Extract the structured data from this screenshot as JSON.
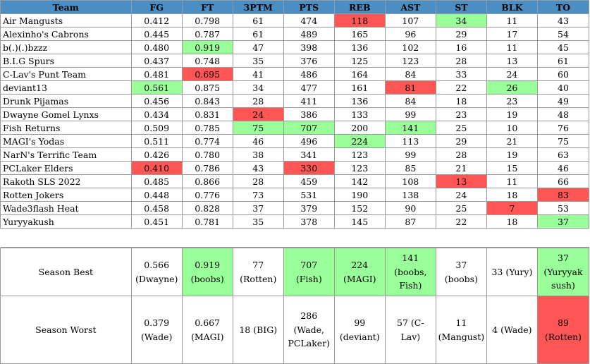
{
  "columns": [
    "Team",
    "FG",
    "FT",
    "3PTM",
    "PTS",
    "REB",
    "AST",
    "ST",
    "BLK",
    "TO"
  ],
  "colors": {
    "header_blue": "#4a8ec3",
    "best_green": "#99ff99",
    "worst_red": "#ff5555"
  },
  "rows": [
    {
      "team": "Air Mangusts",
      "values": [
        "0.412",
        "0.798",
        "61",
        "474",
        "118",
        "107",
        "34",
        "11",
        "43"
      ],
      "hl": [
        "",
        "",
        "",
        "",
        "r",
        "",
        "g",
        "",
        ""
      ]
    },
    {
      "team": "Alexinho's Cabrons",
      "values": [
        "0.445",
        "0.787",
        "61",
        "489",
        "165",
        "96",
        "29",
        "17",
        "54"
      ],
      "hl": [
        "",
        "",
        "",
        "",
        "",
        "",
        "",
        "",
        ""
      ]
    },
    {
      "team": "b(.)(.)bzzz",
      "values": [
        "0.480",
        "0.919",
        "47",
        "398",
        "136",
        "102",
        "16",
        "11",
        "45"
      ],
      "hl": [
        "",
        "g",
        "",
        "",
        "",
        "",
        "",
        "",
        ""
      ]
    },
    {
      "team": "B.I.G Spurs",
      "values": [
        "0.437",
        "0.748",
        "35",
        "376",
        "125",
        "123",
        "28",
        "13",
        "61"
      ],
      "hl": [
        "",
        "",
        "",
        "",
        "",
        "",
        "",
        "",
        ""
      ]
    },
    {
      "team": "C-Lav's Punt Team",
      "values": [
        "0.481",
        "0.695",
        "41",
        "486",
        "164",
        "84",
        "33",
        "24",
        "60"
      ],
      "hl": [
        "",
        "r",
        "",
        "",
        "",
        "",
        "",
        "",
        ""
      ]
    },
    {
      "team": "deviant13",
      "values": [
        "0.561",
        "0.875",
        "34",
        "477",
        "161",
        "81",
        "22",
        "26",
        "40"
      ],
      "hl": [
        "g",
        "",
        "",
        "",
        "",
        "r",
        "",
        "g",
        ""
      ]
    },
    {
      "team": "Drunk Pijamas",
      "values": [
        "0.456",
        "0.843",
        "28",
        "411",
        "136",
        "84",
        "18",
        "23",
        "49"
      ],
      "hl": [
        "",
        "",
        "",
        "",
        "",
        "",
        "",
        "",
        ""
      ]
    },
    {
      "team": "Dwayne Gomel Lynxs",
      "values": [
        "0.434",
        "0.831",
        "24",
        "386",
        "133",
        "99",
        "23",
        "19",
        "48"
      ],
      "hl": [
        "",
        "",
        "r",
        "",
        "",
        "",
        "",
        "",
        ""
      ]
    },
    {
      "team": "Fish Returns",
      "values": [
        "0.509",
        "0.785",
        "75",
        "707",
        "200",
        "141",
        "25",
        "10",
        "76"
      ],
      "hl": [
        "",
        "",
        "g",
        "g",
        "",
        "g",
        "",
        "",
        ""
      ]
    },
    {
      "team": "MAGI's Yodas",
      "values": [
        "0.511",
        "0.774",
        "46",
        "496",
        "224",
        "113",
        "29",
        "21",
        "75"
      ],
      "hl": [
        "",
        "",
        "",
        "",
        "g",
        "",
        "",
        "",
        ""
      ]
    },
    {
      "team": "NarN's Terrific Team",
      "values": [
        "0.426",
        "0.780",
        "38",
        "341",
        "123",
        "99",
        "28",
        "19",
        "63"
      ],
      "hl": [
        "",
        "",
        "",
        "",
        "",
        "",
        "",
        "",
        ""
      ]
    },
    {
      "team": "PCLaker Elders",
      "values": [
        "0.410",
        "0.786",
        "43",
        "330",
        "123",
        "85",
        "21",
        "15",
        "46"
      ],
      "hl": [
        "r",
        "",
        "",
        "r",
        "",
        "",
        "",
        "",
        ""
      ]
    },
    {
      "team": "Rakoth SLS 2022",
      "values": [
        "0.485",
        "0.866",
        "28",
        "459",
        "142",
        "108",
        "13",
        "11",
        "66"
      ],
      "hl": [
        "",
        "",
        "",
        "",
        "",
        "",
        "r",
        "",
        ""
      ]
    },
    {
      "team": "Rotten Jokers",
      "values": [
        "0.448",
        "0.776",
        "73",
        "531",
        "190",
        "138",
        "24",
        "18",
        "83"
      ],
      "hl": [
        "",
        "",
        "",
        "",
        "",
        "",
        "",
        "",
        "r"
      ]
    },
    {
      "team": "Wade3flash Heat",
      "values": [
        "0.458",
        "0.828",
        "37",
        "379",
        "152",
        "90",
        "25",
        "7",
        "53"
      ],
      "hl": [
        "",
        "",
        "",
        "",
        "",
        "",
        "",
        "r",
        ""
      ]
    },
    {
      "team": "Yuryyakush",
      "values": [
        "0.451",
        "0.781",
        "35",
        "378",
        "145",
        "87",
        "22",
        "18",
        "37"
      ],
      "hl": [
        "",
        "",
        "",
        "",
        "",
        "",
        "",
        "",
        "g"
      ]
    }
  ],
  "season_best": {
    "label": "Season Best",
    "cells": [
      {
        "l1": "0.566",
        "l2": "(Dwayne)",
        "hl": ""
      },
      {
        "l1": "0.919",
        "l2": "(boobs)",
        "hl": "g"
      },
      {
        "l1": "77",
        "l2": "(Rotten)",
        "hl": ""
      },
      {
        "l1": "707",
        "l2": "(Fish)",
        "hl": "g"
      },
      {
        "l1": "224",
        "l2": "(MAGI)",
        "hl": "g"
      },
      {
        "l1": "141",
        "l2": "(boobs,",
        "l3": "Fish)",
        "hl": "g"
      },
      {
        "l1": "37",
        "l2": "(boobs)",
        "hl": ""
      },
      {
        "l1": "33 (Yury)",
        "hl": ""
      },
      {
        "l1": "37",
        "l2": "(Yuryyak",
        "l3": "sush)",
        "hl": "g"
      }
    ]
  },
  "season_worst": {
    "label": "Season Worst",
    "cells": [
      {
        "l1": "0.379",
        "l2": "(Wade)",
        "hl": ""
      },
      {
        "l1": "0.667",
        "l2": "(MAGI)",
        "hl": ""
      },
      {
        "l1": "18 (BIG)",
        "hl": ""
      },
      {
        "l1": "286",
        "l2": "(Wade,",
        "l3": "PCLaker)",
        "hl": ""
      },
      {
        "l1": "99",
        "l2": "(deviant)",
        "hl": ""
      },
      {
        "l1": "57 (C-",
        "l2": "Lav)",
        "hl": ""
      },
      {
        "l1": "11",
        "l2": "(Mangust)",
        "hl": ""
      },
      {
        "l1": "4 (Wade)",
        "hl": ""
      },
      {
        "l1": "89",
        "l2": "(Rotten)",
        "hl": "r"
      }
    ]
  }
}
